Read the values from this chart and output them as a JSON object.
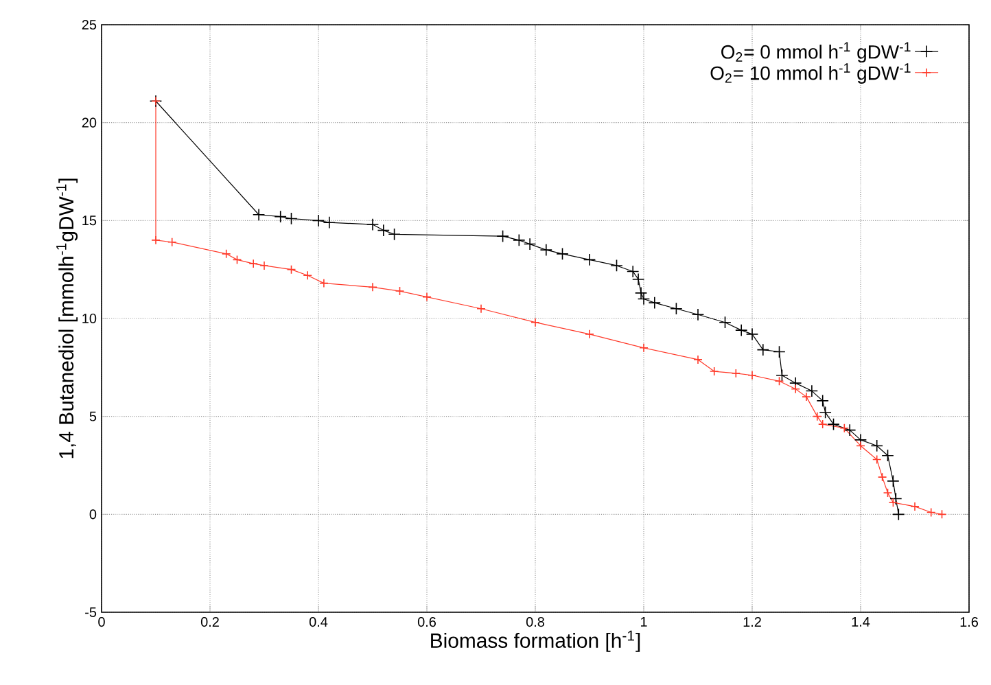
{
  "chart_data": {
    "type": "line",
    "xlabel": "Biomass formation [h$^{-1}$]",
    "ylabel": "1,4 Butanediol [mmolh$^{-1}$gDW$^{-1}$]",
    "xlim": [
      0,
      1.6
    ],
    "ylim": [
      -5,
      25
    ],
    "xticks": [
      0,
      0.2,
      0.4,
      0.6,
      0.8,
      1,
      1.2,
      1.4,
      1.6
    ],
    "yticks": [
      -5,
      0,
      5,
      10,
      15,
      20,
      25
    ],
    "grid": true,
    "legend": "top right",
    "marker": "cross",
    "line_style": "solid",
    "series": [
      {
        "name": "O$_{2}$= 0 mmol h$^{-1}$ gDW$^{-1}$",
        "color": "#000000",
        "x": [
          0.1,
          0.29,
          0.33,
          0.35,
          0.4,
          0.42,
          0.5,
          0.52,
          0.54,
          0.74,
          0.77,
          0.79,
          0.82,
          0.85,
          0.9,
          0.95,
          0.98,
          0.99,
          0.995,
          1.0,
          1.02,
          1.06,
          1.1,
          1.15,
          1.18,
          1.2,
          1.22,
          1.25,
          1.255,
          1.28,
          1.31,
          1.33,
          1.335,
          1.35,
          1.38,
          1.4,
          1.43,
          1.45,
          1.46,
          1.465,
          1.47
        ],
        "values": [
          21.1,
          15.3,
          15.2,
          15.1,
          15.0,
          14.9,
          14.8,
          14.5,
          14.3,
          14.2,
          14.0,
          13.8,
          13.5,
          13.3,
          13.0,
          12.7,
          12.4,
          12.0,
          11.3,
          11.0,
          10.8,
          10.5,
          10.2,
          9.8,
          9.4,
          9.2,
          8.4,
          8.3,
          7.1,
          6.7,
          6.3,
          5.8,
          5.2,
          4.6,
          4.3,
          3.8,
          3.5,
          3.0,
          1.7,
          0.8,
          0.0
        ]
      },
      {
        "name": "O$_{2}$= 10 mmol h$^{-1}$ gDW$^{-1}$",
        "color": "#ff3a2a",
        "x": [
          0.1,
          0.1,
          0.13,
          0.23,
          0.25,
          0.28,
          0.3,
          0.35,
          0.38,
          0.41,
          0.5,
          0.55,
          0.6,
          0.7,
          0.8,
          0.9,
          1.0,
          1.1,
          1.13,
          1.17,
          1.2,
          1.25,
          1.28,
          1.3,
          1.32,
          1.33,
          1.37,
          1.4,
          1.43,
          1.44,
          1.45,
          1.46,
          1.5,
          1.53,
          1.55
        ],
        "values": [
          21.1,
          14.0,
          13.9,
          13.3,
          13.0,
          12.8,
          12.7,
          12.5,
          12.2,
          11.8,
          11.6,
          11.4,
          11.1,
          10.5,
          9.8,
          9.2,
          8.5,
          7.9,
          7.3,
          7.2,
          7.1,
          6.8,
          6.4,
          6.0,
          5.0,
          4.6,
          4.4,
          3.5,
          2.8,
          1.9,
          1.1,
          0.6,
          0.4,
          0.1,
          0.0
        ]
      }
    ]
  }
}
